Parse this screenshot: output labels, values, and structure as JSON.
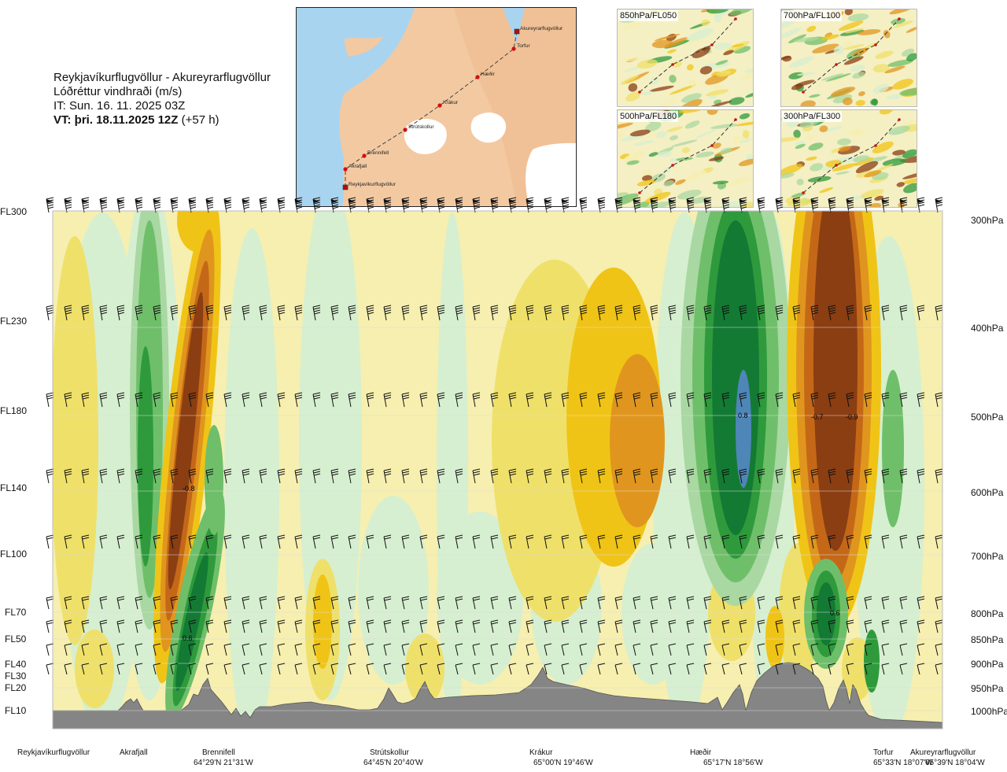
{
  "header": {
    "route": "Reykjavíkurflugvöllur - Akureyrarflugvöllur",
    "parameter": "Lóðréttur vindhraði (m/s)",
    "issue_time": "IT: Sun. 16. 11. 2025 03Z",
    "valid_time_lead": "VT: þri. 18.11.2025 12Z",
    "valid_time_offset": "(+57 h)"
  },
  "route_map": {
    "waypoints": [
      "Reykjavíkurflugvöllur",
      "Akrafjall",
      "Brennifell",
      "Strútskollur",
      "Krákur",
      "Hæðir",
      "Torfur",
      "Akureyrarflugvöllur"
    ],
    "colors": {
      "sea": "#a8d4f0",
      "land": "#f3c9a2",
      "ice": "#ffffff",
      "route": "#d01010"
    }
  },
  "thumbnails": [
    {
      "label": "850hPa/FL050"
    },
    {
      "label": "700hPa/FL100"
    },
    {
      "label": "500hPa/FL180"
    },
    {
      "label": "300hPa/FL300"
    }
  ],
  "flight_levels": [
    {
      "label": "FL300"
    },
    {
      "label": "FL230"
    },
    {
      "label": "FL180"
    },
    {
      "label": "FL140"
    },
    {
      "label": "FL100"
    },
    {
      "label": "FL70"
    },
    {
      "label": "FL50"
    },
    {
      "label": "FL40"
    },
    {
      "label": "FL30"
    },
    {
      "label": "FL20"
    },
    {
      "label": "FL10"
    }
  ],
  "pressure_levels": [
    {
      "label": "300hPa"
    },
    {
      "label": "400hPa"
    },
    {
      "label": "500hPa"
    },
    {
      "label": "600hPa"
    },
    {
      "label": "700hPa"
    },
    {
      "label": "800hPa"
    },
    {
      "label": "850hPa"
    },
    {
      "label": "900hPa"
    },
    {
      "label": "950hPa"
    },
    {
      "label": "1000hPa"
    }
  ],
  "field_labels": [
    {
      "text": "-0.8"
    },
    {
      "text": "0.6"
    },
    {
      "text": "0.8"
    },
    {
      "text": "-0.7"
    },
    {
      "text": "-0.9"
    },
    {
      "text": "0.6"
    }
  ],
  "locations": [
    {
      "name": "Reykjavíkurflugvöllur",
      "coord": ""
    },
    {
      "name": "Akrafjall",
      "coord": ""
    },
    {
      "name": "Brennifell",
      "coord": "64°29'N 21°31'W"
    },
    {
      "name": "Strútskollur",
      "coord": "64°45'N 20°40'W"
    },
    {
      "name": "Krákur",
      "coord": "65°00'N 19°46'W"
    },
    {
      "name": "Hæðir",
      "coord": "65°17'N 18°56'W"
    },
    {
      "name": "Torfur",
      "coord": "65°33'N 18°07'W"
    },
    {
      "name": "Akureyrarflugvöllur",
      "coord": "65°39'N 18°04'W"
    }
  ],
  "colors": {
    "terrain": "#858585",
    "strong_up": "#4f86b8",
    "up": [
      "#d6efd0",
      "#a9d8a2",
      "#6fbf6a",
      "#2e9a3c",
      "#137a34"
    ],
    "down": [
      "#f6efb0",
      "#efe06a",
      "#f0c416",
      "#e0961e",
      "#c46818",
      "#8a3e12"
    ]
  }
}
